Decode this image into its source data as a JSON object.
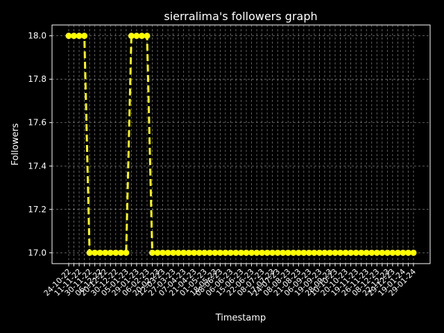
{
  "chart_data": {
    "type": "line",
    "title": "sierralima's followers graph",
    "xlabel": "Timestamp",
    "ylabel": "Followers",
    "ylim": [
      16.95,
      18.05
    ],
    "yticks": [
      17.0,
      17.2,
      17.4,
      17.6,
      17.8,
      18.0
    ],
    "ytick_labels": [
      "17.0",
      "17.2",
      "17.4",
      "17.6",
      "17.8",
      "18.0"
    ],
    "grid": true,
    "line_color": "#ffff00",
    "line_style": "dashed",
    "marker": "circle",
    "x": [
      "24-10-22",
      "",
      "",
      "",
      "11-11-22",
      "",
      "",
      "",
      "",
      "",
      "",
      "",
      "30-12-22",
      "",
      "",
      "",
      "29-01-23",
      "",
      "",
      "",
      "",
      "",
      "",
      "",
      "",
      "",
      "",
      "",
      "",
      "",
      "",
      "",
      "",
      "",
      "",
      "",
      "",
      "",
      "",
      "",
      "",
      "",
      "",
      "",
      "",
      "",
      "",
      "",
      "",
      "",
      "",
      "",
      "",
      "",
      "",
      "",
      "",
      "",
      "",
      "",
      "",
      "",
      "",
      "",
      "",
      "",
      "29-01-24"
    ],
    "values": [
      18,
      18,
      18,
      18,
      17,
      17,
      17,
      17,
      17,
      17,
      17,
      17,
      18,
      18,
      18,
      18,
      17,
      17,
      17,
      17,
      17,
      17,
      17,
      17,
      17,
      17,
      17,
      17,
      17,
      17,
      17,
      17,
      17,
      17,
      17,
      17,
      17,
      17,
      17,
      17,
      17,
      17,
      17,
      17,
      17,
      17,
      17,
      17,
      17,
      17,
      17,
      17,
      17,
      17,
      17,
      17,
      17,
      17,
      17,
      17,
      17,
      17,
      17,
      17,
      17,
      17,
      17
    ],
    "xtick_labels": [
      "24-10-22",
      "11-11-22",
      "30-11-22",
      "06-12-22",
      "20-12-22",
      "30-12-22",
      "05-01-23",
      "29-01-23",
      "06-02-23",
      "20-02-23",
      "12-03-23",
      "27-03-23",
      "07-04-23",
      "21-04-23",
      "01-05-23",
      "18-05-23",
      "08-06-23",
      "06-06-23",
      "15-06-23",
      "22-06-23",
      "08-07-23",
      "17-07-23",
      "24-07-23",
      "08-08-23",
      "21-08-23",
      "06-09-23",
      "19-09-23",
      "28-09-23",
      "10-10-23",
      "20-10-23",
      "19-11-23",
      "26-11-23",
      "08-12-23",
      "22-12-23",
      "29-12-23",
      "19-01-24",
      "29-01-24"
    ]
  }
}
